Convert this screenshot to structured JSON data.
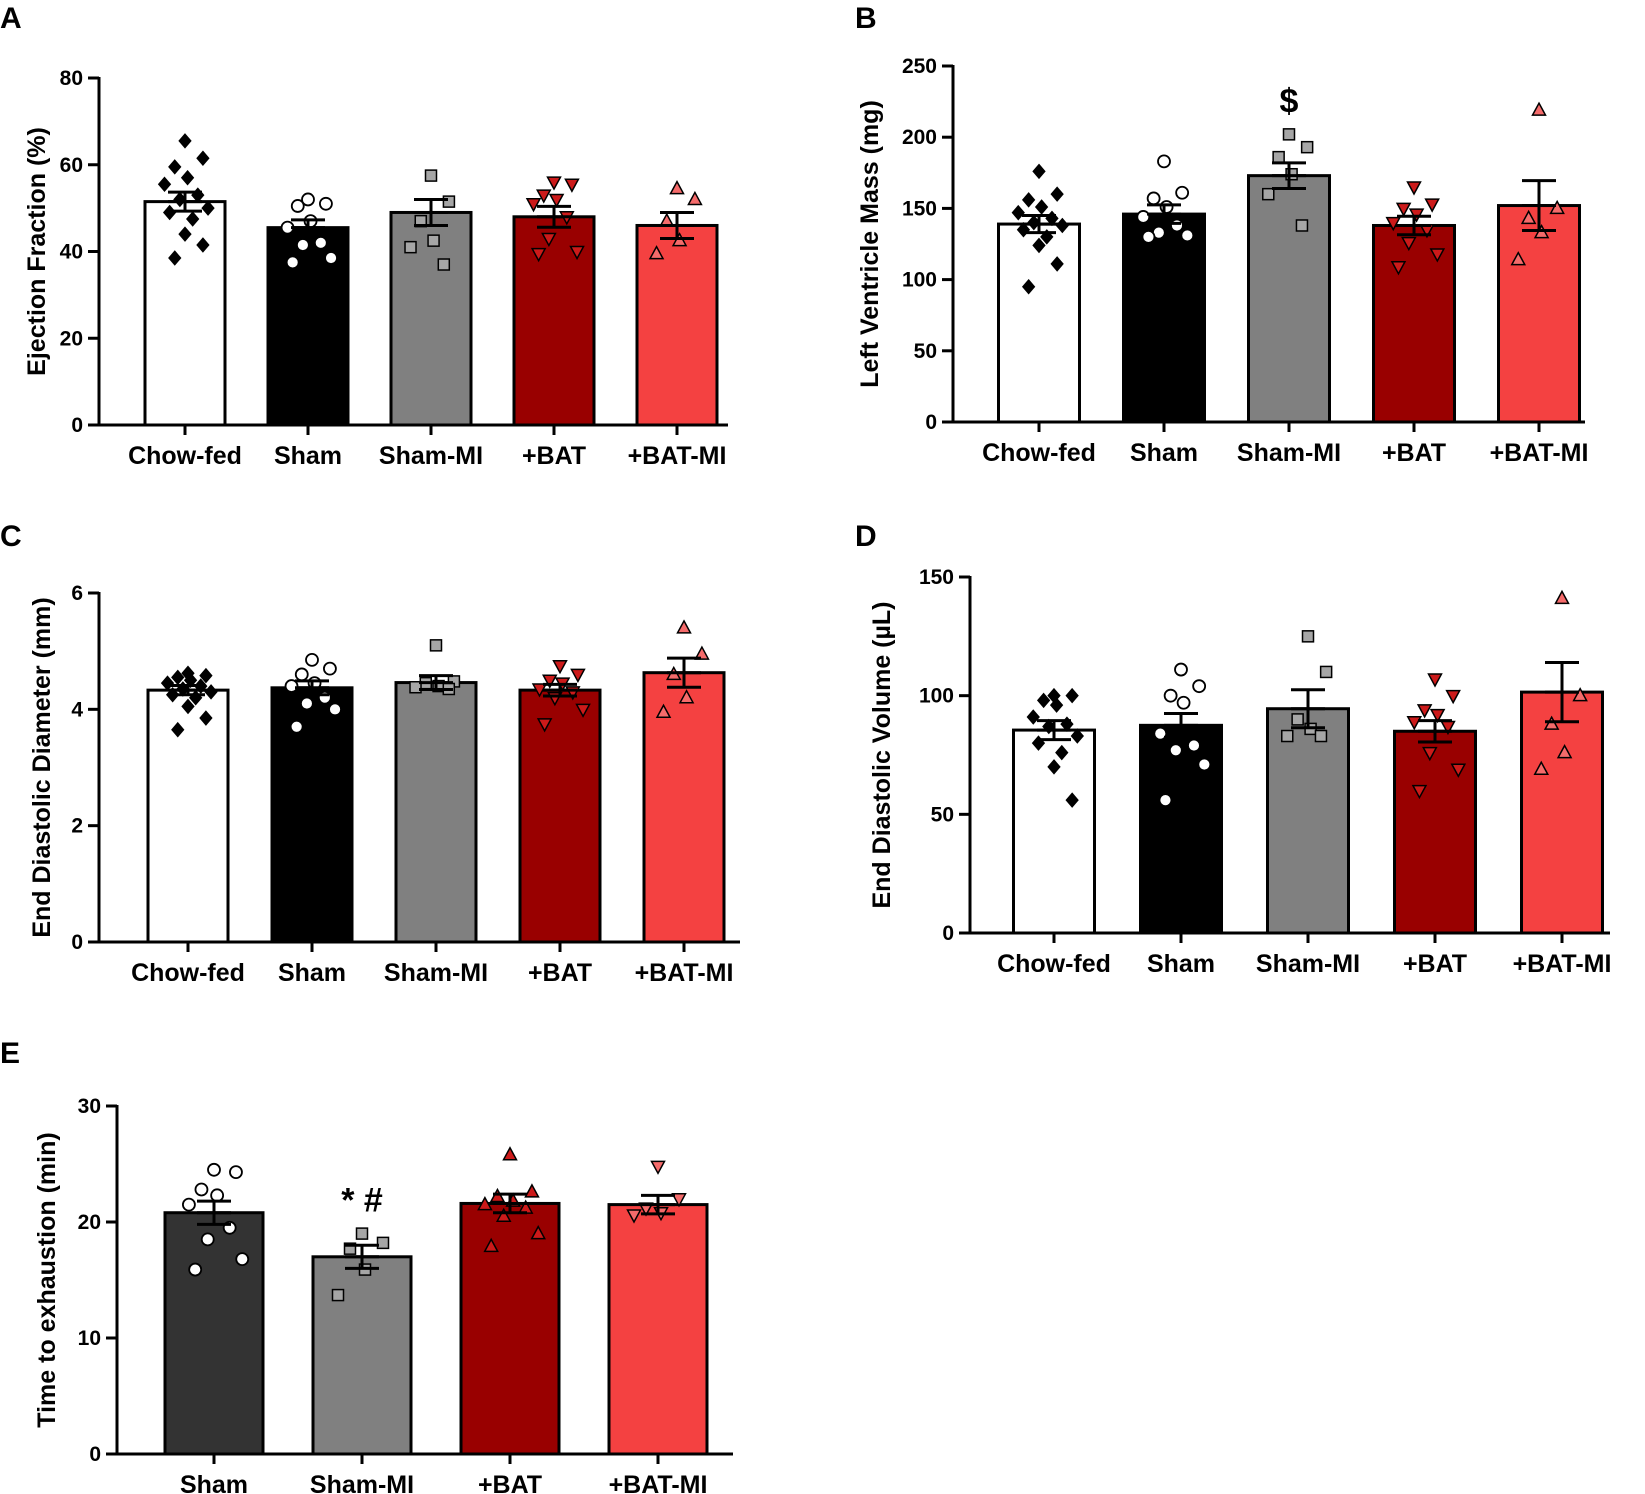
{
  "colors": {
    "chow": "#ffffff",
    "sham": "#000000",
    "sham_e": "#333333",
    "shammi": "#808080",
    "bat": "#990000",
    "batmi": "#f44141"
  },
  "chart_data": [
    {
      "id": "A",
      "panel_label": "A",
      "type": "bar",
      "ylabel": "Ejection Fraction (%)",
      "ylim": [
        0,
        80
      ],
      "yticks": [
        0,
        20,
        40,
        60,
        80
      ],
      "tick_labels": [
        "0",
        "20",
        "40",
        "60",
        "80"
      ],
      "categories": [
        "Chow-fed",
        "Sham",
        "Sham-MI",
        "+BAT",
        "+BAT-MI"
      ],
      "values": [
        51.5,
        45.5,
        49,
        48,
        46
      ],
      "sem": [
        2.2,
        1.8,
        3.0,
        2.4,
        3.0
      ],
      "colors": [
        "#ffffff",
        "#000000",
        "#808080",
        "#990000",
        "#f44141"
      ],
      "markers": [
        "diamond",
        "circle",
        "square",
        "triangle-down",
        "triangle-up"
      ],
      "marker_colors": [
        "#000000",
        "#ffffff",
        "#a6a6a6",
        "#cc1a1a",
        "#f56b6b"
      ],
      "points": [
        [
          65.5,
          61.5,
          59.5,
          57,
          55.5,
          53,
          52,
          50,
          49,
          47.5,
          44,
          41.5,
          38.5
        ],
        [
          52,
          51,
          50.5,
          47,
          45.5,
          42,
          41.5,
          38.5,
          37.5
        ],
        [
          57.5,
          51.5,
          47,
          42.5,
          41,
          37
        ],
        [
          56,
          55.5,
          53,
          52,
          51,
          48,
          43,
          40,
          39.5
        ],
        [
          54.5,
          52,
          47,
          42.5,
          39.5
        ]
      ],
      "annotations": [
        "",
        "",
        "",
        "",
        ""
      ]
    },
    {
      "id": "B",
      "panel_label": "B",
      "type": "bar",
      "ylabel": "Left Ventricle Mass (mg)",
      "ylim": [
        0,
        250
      ],
      "yticks": [
        0,
        50,
        100,
        150,
        200,
        250
      ],
      "tick_labels": [
        "0",
        "50",
        "100",
        "150",
        "200",
        "250"
      ],
      "categories": [
        "Chow-fed",
        "Sham",
        "Sham-MI",
        "+BAT",
        "+BAT-MI"
      ],
      "values": [
        139,
        146,
        173,
        138,
        152
      ],
      "sem": [
        6.0,
        6.5,
        9.0,
        6.5,
        17.5
      ],
      "colors": [
        "#ffffff",
        "#000000",
        "#808080",
        "#990000",
        "#f44141"
      ],
      "markers": [
        "diamond",
        "circle",
        "square",
        "triangle-down",
        "triangle-up"
      ],
      "marker_colors": [
        "#000000",
        "#ffffff",
        "#a6a6a6",
        "#cc1a1a",
        "#f56b6b"
      ],
      "points": [
        [
          176,
          160,
          156,
          151,
          147,
          143,
          140,
          138,
          135,
          130,
          124,
          111,
          95
        ],
        [
          183,
          161,
          157,
          151,
          144,
          138,
          133,
          131,
          130
        ],
        [
          202,
          193,
          186,
          174,
          160,
          138
        ],
        [
          165,
          153,
          150,
          146,
          140,
          135,
          126,
          118,
          109
        ],
        [
          219,
          150,
          143,
          133,
          114
        ]
      ],
      "annotations": [
        "",
        "",
        "$",
        "",
        ""
      ]
    },
    {
      "id": "C",
      "panel_label": "C",
      "type": "bar",
      "ylabel": "End Diastolic Diameter (mm)",
      "ylim": [
        0,
        6
      ],
      "yticks": [
        0,
        2,
        4,
        6
      ],
      "tick_labels": [
        "0",
        "2",
        "4",
        "6"
      ],
      "categories": [
        "Chow-fed",
        "Sham",
        "Sham-MI",
        "+BAT",
        "+BAT-MI"
      ],
      "values": [
        4.33,
        4.37,
        4.46,
        4.33,
        4.63
      ],
      "sem": [
        0.08,
        0.12,
        0.12,
        0.1,
        0.25
      ],
      "colors": [
        "#ffffff",
        "#000000",
        "#808080",
        "#990000",
        "#f44141"
      ],
      "markers": [
        "diamond",
        "circle",
        "square",
        "triangle-down",
        "triangle-up"
      ],
      "marker_colors": [
        "#000000",
        "#ffffff",
        "#a6a6a6",
        "#cc1a1a",
        "#f56b6b"
      ],
      "points": [
        [
          4.62,
          4.58,
          4.55,
          4.5,
          4.45,
          4.4,
          4.35,
          4.3,
          4.25,
          4.2,
          4.05,
          3.85,
          3.65
        ],
        [
          4.85,
          4.7,
          4.6,
          4.45,
          4.4,
          4.2,
          4.1,
          4.0,
          3.7
        ],
        [
          5.1,
          4.48,
          4.45,
          4.4,
          4.38,
          4.35
        ],
        [
          4.75,
          4.6,
          4.5,
          4.45,
          4.35,
          4.3,
          4.2,
          4.0,
          3.75
        ],
        [
          5.4,
          4.95,
          4.6,
          4.2,
          3.95
        ]
      ],
      "annotations": [
        "",
        "",
        "",
        "",
        ""
      ]
    },
    {
      "id": "D",
      "panel_label": "D",
      "type": "bar",
      "ylabel": "End Diastolic Volume (µL)",
      "ylim": [
        0,
        150
      ],
      "yticks": [
        0,
        50,
        100,
        150
      ],
      "tick_labels": [
        "0",
        "50",
        "100",
        "150"
      ],
      "categories": [
        "Chow-fed",
        "Sham",
        "Sham-MI",
        "+BAT",
        "+BAT-MI"
      ],
      "values": [
        85.5,
        87.5,
        94.5,
        85,
        101.5
      ],
      "sem": [
        4.0,
        5.0,
        8.0,
        4.5,
        12.5
      ],
      "colors": [
        "#ffffff",
        "#000000",
        "#808080",
        "#990000",
        "#f44141"
      ],
      "markers": [
        "diamond",
        "circle",
        "square",
        "triangle-down",
        "triangle-up"
      ],
      "marker_colors": [
        "#000000",
        "#ffffff",
        "#a6a6a6",
        "#cc1a1a",
        "#f56b6b"
      ],
      "points": [
        [
          100,
          100,
          98,
          96,
          91,
          88,
          87,
          83,
          80,
          76,
          70,
          56
        ],
        [
          111,
          104,
          100,
          97,
          84,
          79,
          77,
          71,
          56
        ],
        [
          125,
          110,
          90,
          86,
          83,
          83
        ],
        [
          107,
          100,
          94,
          92,
          89,
          87,
          76,
          69,
          60
        ],
        [
          141,
          100,
          88,
          76,
          69
        ]
      ],
      "annotations": [
        "",
        "",
        "",
        "",
        ""
      ]
    },
    {
      "id": "E",
      "panel_label": "E",
      "type": "bar",
      "ylabel": "Time to exhaustion (min)",
      "ylim": [
        0,
        30
      ],
      "yticks": [
        0,
        10,
        20,
        30
      ],
      "tick_labels": [
        "0",
        "10",
        "20",
        "30"
      ],
      "categories": [
        "Sham",
        "Sham-MI",
        "+BAT",
        "+BAT-MI"
      ],
      "values": [
        20.8,
        17.0,
        21.6,
        21.5
      ],
      "sem": [
        1.0,
        1.0,
        0.8,
        0.8
      ],
      "colors": [
        "#333333",
        "#808080",
        "#990000",
        "#f44141"
      ],
      "markers": [
        "circle",
        "square",
        "triangle-up",
        "triangle-down"
      ],
      "marker_colors": [
        "#ffffff",
        "#a6a6a6",
        "#cc1a1a",
        "#f56b6b"
      ],
      "points": [
        [
          24.5,
          24.3,
          22.8,
          22.3,
          21.5,
          19.5,
          18.5,
          16.8,
          15.9
        ],
        [
          19.0,
          18.2,
          17.7,
          15.9,
          13.7
        ],
        [
          25.8,
          22.6,
          22.2,
          21.8,
          21.5,
          21.2,
          20.5,
          19.0,
          17.9
        ],
        [
          24.8,
          22.0,
          21.2,
          20.8,
          20.6
        ]
      ],
      "annotations": [
        "",
        "* #",
        "",
        ""
      ]
    }
  ]
}
